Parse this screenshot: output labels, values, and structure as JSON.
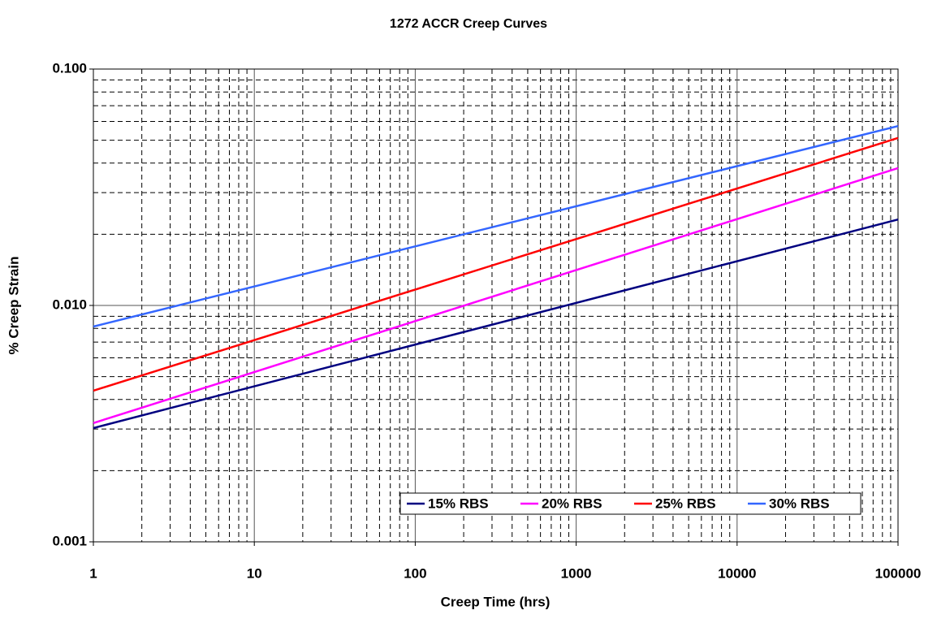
{
  "chart_data": {
    "type": "line",
    "title": "1272 ACCR Creep Curves",
    "x_label": "Creep Time (hrs)",
    "y_label": "% Creep Strain",
    "x": [
      1,
      100000
    ],
    "series": [
      {
        "name": "15% RBS",
        "color": "#000080",
        "values": [
          0.00303,
          0.0231
        ]
      },
      {
        "name": "20% RBS",
        "color": "#ff00ff",
        "values": [
          0.00318,
          0.0381
        ]
      },
      {
        "name": "25% RBS",
        "color": "#ff0000",
        "values": [
          0.00436,
          0.0511
        ]
      },
      {
        "name": "30% RBS",
        "color": "#3366ff",
        "values": [
          0.00814,
          0.0574
        ]
      }
    ],
    "xlim": [
      1,
      100000
    ],
    "xticks": [
      1,
      10,
      100,
      1000,
      10000,
      100000
    ],
    "ylim": [
      0.001,
      0.1
    ],
    "yticks": [
      {
        "value": 0.001,
        "label": "0.001"
      },
      {
        "value": 0.01,
        "label": "0.010"
      },
      {
        "value": 0.1,
        "label": "0.100"
      }
    ],
    "xscale": "log",
    "yscale": "log",
    "grid": true,
    "minor_grid": true,
    "legend": "lower right"
  }
}
